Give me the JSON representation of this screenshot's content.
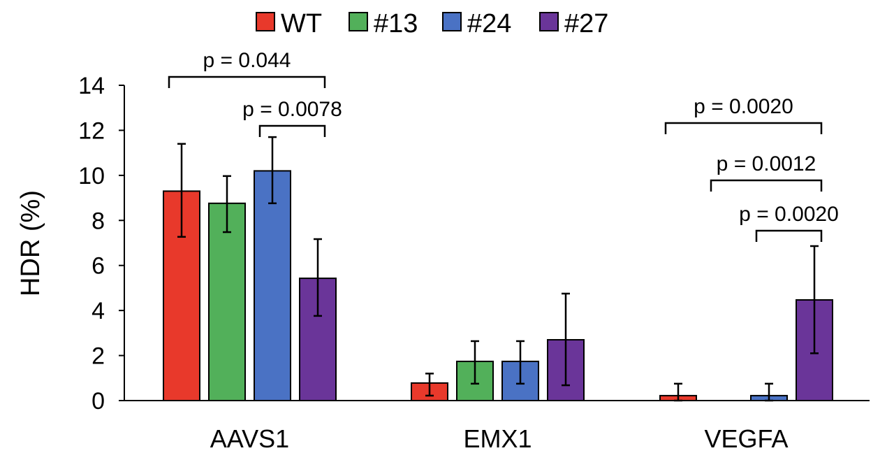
{
  "chart_data": {
    "type": "bar",
    "ylabel": "HDR (%)",
    "ylim": [
      0,
      14
    ],
    "yticks": [
      "0",
      "2",
      "4",
      "6",
      "8",
      "10",
      "12",
      "14"
    ],
    "grid": false,
    "legend_position": "top",
    "categories": [
      "AAVS1",
      "EMX1",
      "VEGFA"
    ],
    "series": [
      {
        "name": "WT",
        "color": "#e8392b",
        "values": [
          9.3,
          0.78,
          0.22
        ],
        "err_upper": [
          11.4,
          1.2,
          0.75
        ],
        "err_lower": [
          7.27,
          0.22,
          0
        ]
      },
      {
        "name": "#13",
        "color": "#52b05a",
        "values": [
          8.76,
          1.74,
          0
        ],
        "err_upper": [
          9.97,
          2.64,
          null
        ],
        "err_lower": [
          7.48,
          0.75,
          null
        ]
      },
      {
        "name": "#24",
        "color": "#4a72c4",
        "values": [
          10.2,
          1.74,
          0.22
        ],
        "err_upper": [
          11.7,
          2.64,
          0.75
        ],
        "err_lower": [
          8.76,
          0.75,
          0
        ]
      },
      {
        "name": "#27",
        "color": "#6a3599",
        "values": [
          5.43,
          2.7,
          4.47
        ],
        "err_upper": [
          7.17,
          4.75,
          6.86
        ],
        "err_lower": [
          3.76,
          0.68,
          2.1
        ]
      }
    ],
    "annotations": [
      {
        "text": "p = 0.044",
        "category": "AAVS1",
        "from": "WT",
        "to": "#27"
      },
      {
        "text": "p = 0.0078",
        "category": "AAVS1",
        "from": "#24",
        "to": "#27"
      },
      {
        "text": "p = 0.0020",
        "category": "VEGFA",
        "from": "WT",
        "to": "#27"
      },
      {
        "text": "p = 0.0012",
        "category": "VEGFA",
        "from": "#13",
        "to": "#27"
      },
      {
        "text": "p = 0.0020",
        "category": "VEGFA",
        "from": "#24",
        "to": "#27"
      }
    ]
  }
}
